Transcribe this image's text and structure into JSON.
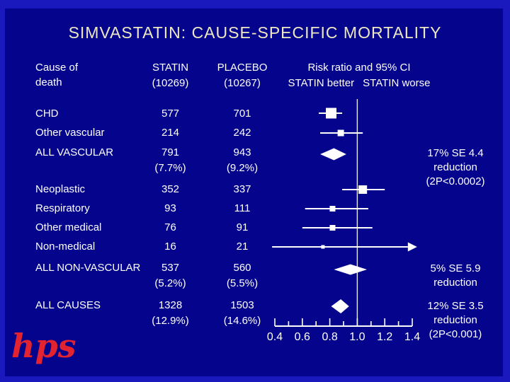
{
  "slide": {
    "title": "SIMVASTATIN: CAUSE-SPECIFIC MORTALITY",
    "logo_text": "hps"
  },
  "colors": {
    "frame": "#1919be",
    "background": "#04048c",
    "title_text": "#eee8c2",
    "body_text": "#ffffff",
    "marker": "#ffffff",
    "logo": "#e3232f"
  },
  "header": {
    "cause_line1": "Cause of",
    "cause_line2": "death",
    "statin_label": "STATIN",
    "statin_n": "(10269)",
    "placebo_label": "PLACEBO",
    "placebo_n": "(10267)",
    "risk_ratio_label": "Risk ratio and 95% CI",
    "direction_left": "STATIN better",
    "direction_right": "STATIN worse"
  },
  "chart_data": {
    "type": "forest",
    "title": "SIMVASTATIN: CAUSE-SPECIFIC MORTALITY",
    "x_axis": {
      "min": 0.4,
      "max": 1.4,
      "tick_step": 0.1,
      "major_tick_labels": [
        "0.4",
        "0.6",
        "0.8",
        "1.0",
        "1.2",
        "1.4"
      ],
      "reference_line": 1.0
    },
    "rows": [
      {
        "cause": "CHD",
        "statin": "577",
        "placebo": "701",
        "rr": 0.81,
        "ci": [
          0.72,
          0.89
        ],
        "marker": "square",
        "size": 15
      },
      {
        "cause": "Other vascular",
        "statin": "214",
        "placebo": "242",
        "rr": 0.88,
        "ci": [
          0.73,
          1.04
        ],
        "marker": "square",
        "size": 9
      },
      {
        "cause": "ALL VASCULAR",
        "statin": "791",
        "statin_pct": "(7.7%)",
        "placebo": "943",
        "placebo_pct": "(9.2%)",
        "rr": 0.83,
        "ci": [
          0.73,
          0.92
        ],
        "marker": "diamond",
        "diamond_height": 17,
        "annotation": [
          "17% SE 4.4",
          "reduction",
          "(2P<0.0002)"
        ]
      },
      {
        "cause": "Neoplastic",
        "statin": "352",
        "placebo": "337",
        "rr": 1.04,
        "ci": [
          0.89,
          1.2
        ],
        "marker": "square",
        "size": 12
      },
      {
        "cause": "Respiratory",
        "statin": "93",
        "placebo": "111",
        "rr": 0.82,
        "ci": [
          0.62,
          1.08
        ],
        "marker": "square",
        "size": 8
      },
      {
        "cause": "Other medical",
        "statin": "76",
        "placebo": "91",
        "rr": 0.82,
        "ci": [
          0.6,
          1.11
        ],
        "marker": "square",
        "size": 8
      },
      {
        "cause": "Non-medical",
        "statin": "16",
        "placebo": "21",
        "rr": 0.75,
        "ci": [
          0.38,
          1.43
        ],
        "ci_clipped_right": true,
        "marker": "dot",
        "size": 5
      },
      {
        "cause": "ALL NON-VASCULAR",
        "statin": "537",
        "statin_pct": "(5.2%)",
        "placebo": "560",
        "placebo_pct": "(5.5%)",
        "rr": 0.95,
        "ci": [
          0.83,
          1.07
        ],
        "marker": "diamond",
        "diamond_height": 15,
        "annotation": [
          "5% SE 5.9",
          "reduction"
        ]
      },
      {
        "cause": "ALL CAUSES",
        "statin": "1328",
        "statin_pct": "(12.9%)",
        "placebo": "1503",
        "placebo_pct": "(14.6%)",
        "rr": 0.88,
        "ci": [
          0.81,
          0.94
        ],
        "marker": "diamond",
        "diamond_height": 20,
        "annotation": [
          "12% SE 3.5",
          "reduction",
          "(2P<0.001)"
        ]
      }
    ]
  }
}
